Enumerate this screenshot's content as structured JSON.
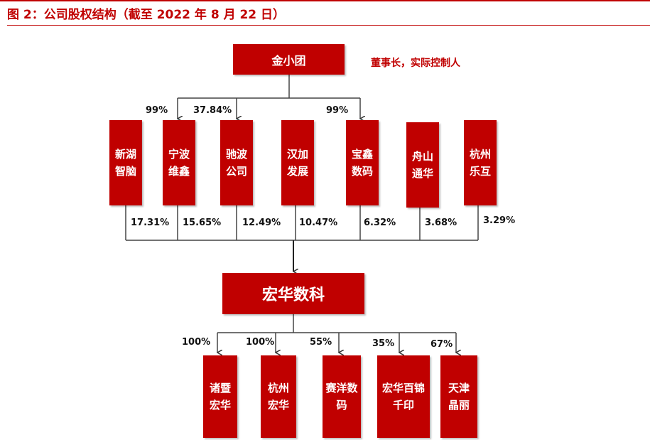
{
  "title": "图 2：公司股权结构（截至 2022 年 8 月 22 日）",
  "controller": {
    "name": "金小团",
    "role": "董事长，实际控制人"
  },
  "controller_stakes": [
    "99%",
    "37.84%",
    "99%"
  ],
  "shareholders": [
    {
      "name": "新湖智脑",
      "share": "17.31%"
    },
    {
      "name": "宁波维鑫",
      "share": "15.65%"
    },
    {
      "name": "驰波公司",
      "share": "12.49%"
    },
    {
      "name": "汉加发展",
      "share": "10.47%"
    },
    {
      "name": "宝鑫数码",
      "share": "6.32%"
    },
    {
      "name": "舟山通华",
      "share": "3.68%"
    },
    {
      "name": "杭州乐互",
      "share": "3.29%"
    }
  ],
  "company": {
    "name": "宏华数科"
  },
  "subsidiaries": [
    {
      "name": "诸暨宏华",
      "share": "100%"
    },
    {
      "name": "杭州宏华",
      "share": "100%"
    },
    {
      "name": "赛洋数码",
      "share": "55%"
    },
    {
      "name": "宏华百锦千印",
      "share": "35%"
    },
    {
      "name": "天津晶丽",
      "share": "67%"
    }
  ],
  "colors": {
    "brand": "#c00000",
    "line": "#444444"
  }
}
